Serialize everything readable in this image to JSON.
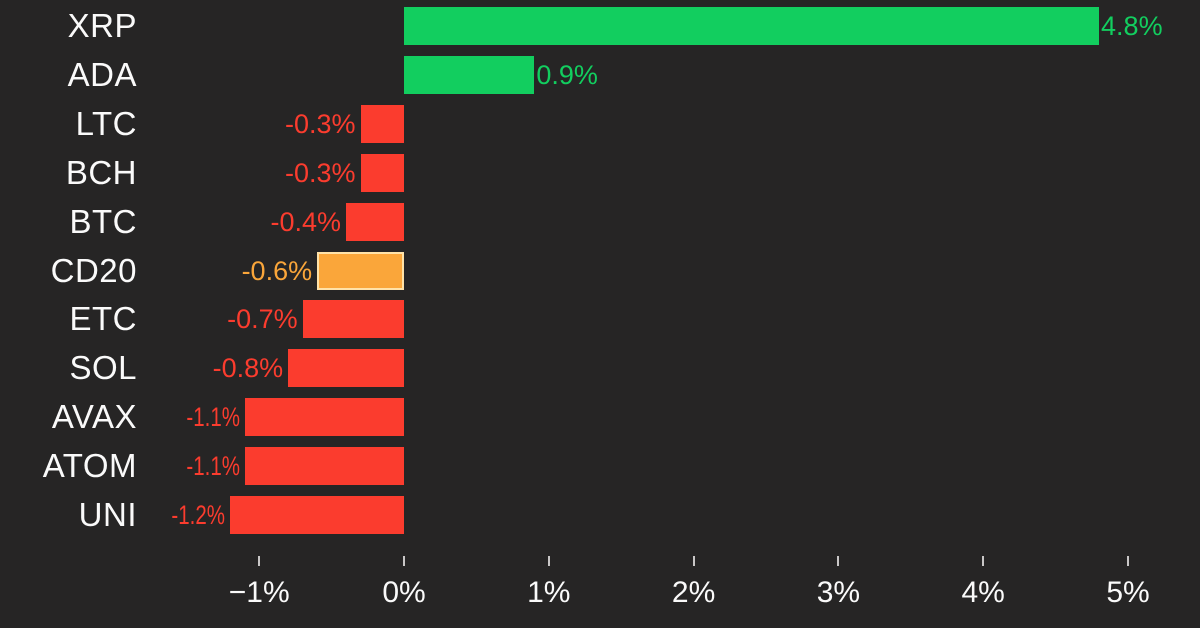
{
  "chart_data": {
    "type": "bar",
    "orientation": "horizontal",
    "title": "",
    "categories": [
      "XRP",
      "ADA",
      "LTC",
      "BCH",
      "BTC",
      "CD20",
      "ETC",
      "SOL",
      "AVAX",
      "ATOM",
      "UNI"
    ],
    "values": [
      4.8,
      0.9,
      -0.3,
      -0.3,
      -0.4,
      -0.6,
      -0.7,
      -0.8,
      -1.1,
      -1.1,
      -1.2
    ],
    "value_labels": [
      "4.8%",
      "0.9%",
      "-0.3%",
      "-0.3%",
      "-0.4%",
      "-0.6%",
      "-0.7%",
      "-0.8%",
      "-1.1%",
      "-1.1%",
      "-1.2%"
    ],
    "highlight_category": "CD20",
    "x_tick_labels": [
      "−1%",
      "0%",
      "1%",
      "2%",
      "3%",
      "4%",
      "5%"
    ],
    "x_tick_values": [
      -1,
      0,
      1,
      2,
      3,
      4,
      5
    ],
    "xlim": [
      -1.4,
      5.5
    ],
    "grid": "off",
    "legend": "none",
    "colors": {
      "background": "#262525",
      "positive": "#12ce5f",
      "negative": "#fb3c2e",
      "highlight": "#faa63a",
      "highlight_border": "#ffe2a8",
      "category_label": "#fafafa",
      "axis_label": "#fafafa",
      "tick_mark": "#c9c7c7"
    }
  }
}
